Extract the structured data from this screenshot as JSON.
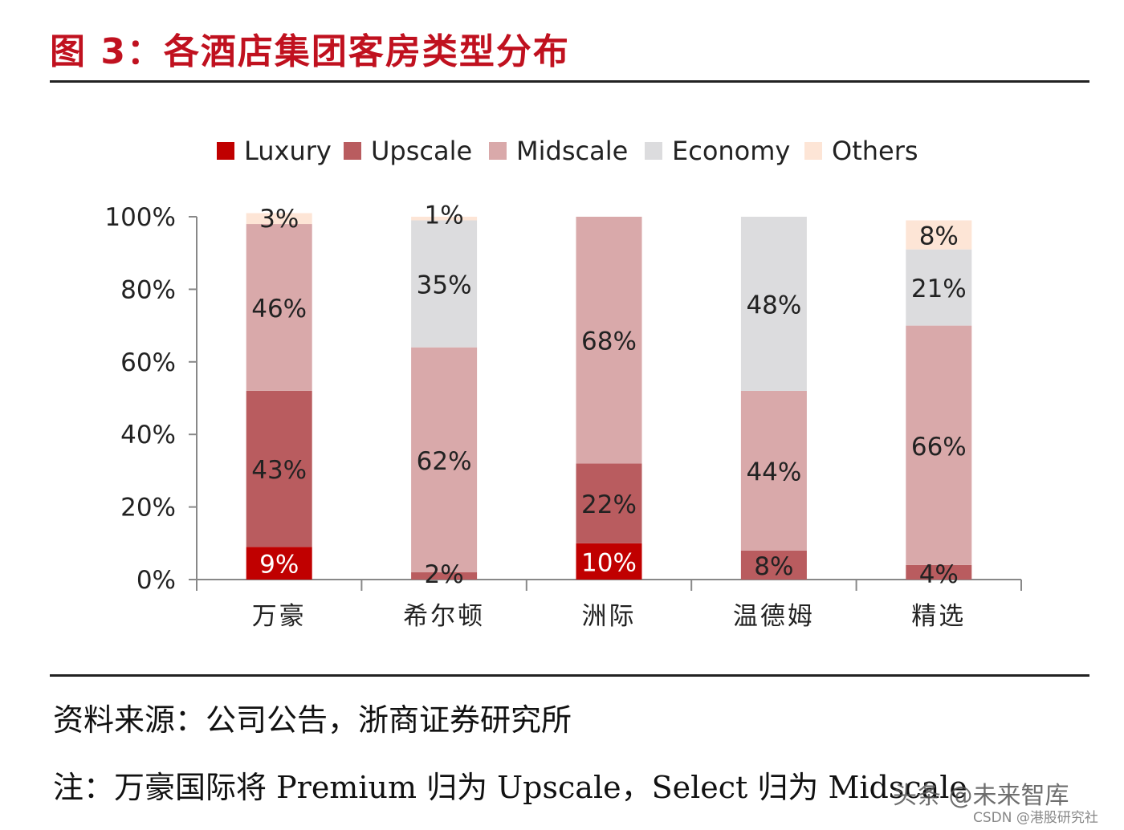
{
  "figure": {
    "title": "图 3：各酒店集团客房类型分布",
    "source": "资料来源：公司公告，浙商证券研究所",
    "note": "注：万豪国际将 Premium 归为 Upscale，Select 归为 Midscale"
  },
  "watermarks": {
    "toutiao": "头条 @未来智库",
    "csdn": "CSDN @港股研究社"
  },
  "chart_data": {
    "type": "bar",
    "stacked": true,
    "categories": [
      "万豪",
      "希尔顿",
      "洲际",
      "温德姆",
      "精选"
    ],
    "ylim": [
      0,
      100
    ],
    "yticks": [
      0,
      20,
      40,
      60,
      80,
      100
    ],
    "ytick_labels": [
      "0%",
      "20%",
      "40%",
      "60%",
      "80%",
      "100%"
    ],
    "legend_position": "top-center",
    "series": [
      {
        "name": "Luxury",
        "color": "#c00000",
        "values": [
          9,
          0,
          10,
          0,
          0
        ],
        "labels": [
          "9%",
          "",
          "10%",
          "",
          ""
        ]
      },
      {
        "name": "Upscale",
        "color": "#b95c5f",
        "values": [
          43,
          2,
          22,
          8,
          4
        ],
        "labels": [
          "43%",
          "2%",
          "22%",
          "8%",
          "4%"
        ]
      },
      {
        "name": "Midscale",
        "color": "#d9a9aa",
        "values": [
          46,
          62,
          68,
          44,
          66
        ],
        "labels": [
          "46%",
          "62%",
          "68%",
          "44%",
          "66%"
        ]
      },
      {
        "name": "Economy",
        "color": "#dcdcde",
        "values": [
          0,
          35,
          0,
          48,
          21
        ],
        "labels": [
          "",
          "35%",
          "",
          "48%",
          "21%"
        ]
      },
      {
        "name": "Others",
        "color": "#fde5d6",
        "values": [
          3,
          1,
          0,
          0,
          8
        ],
        "labels": [
          "3%",
          "1%",
          "",
          "",
          "8%"
        ]
      }
    ]
  }
}
